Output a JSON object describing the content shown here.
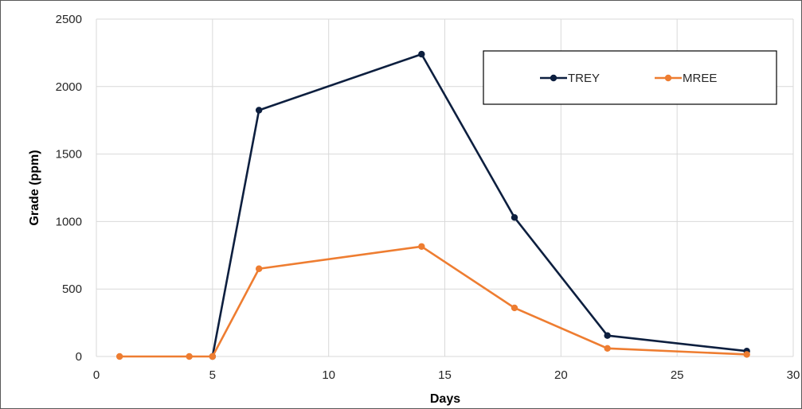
{
  "chart_data": {
    "type": "line",
    "xlabel": "Days",
    "ylabel": "Grade (ppm)",
    "xlim": [
      0,
      30
    ],
    "ylim": [
      0,
      2500
    ],
    "xticks": [
      0,
      5,
      10,
      15,
      20,
      25,
      30
    ],
    "yticks": [
      0,
      500,
      1000,
      1500,
      2000,
      2500
    ],
    "grid": true,
    "legend_position": "top-right",
    "series": [
      {
        "name": "TREY",
        "color": "#0d1f3f",
        "points": [
          [
            5,
            0
          ],
          [
            7,
            1825
          ],
          [
            14,
            2240
          ],
          [
            18,
            1030
          ],
          [
            22,
            155
          ],
          [
            28,
            40
          ]
        ]
      },
      {
        "name": "MREE",
        "color": "#ee7d31",
        "points": [
          [
            1,
            0
          ],
          [
            4,
            0
          ],
          [
            5,
            0
          ],
          [
            7,
            650
          ],
          [
            14,
            815
          ],
          [
            18,
            360
          ],
          [
            22,
            60
          ],
          [
            28,
            15
          ]
        ]
      }
    ]
  }
}
